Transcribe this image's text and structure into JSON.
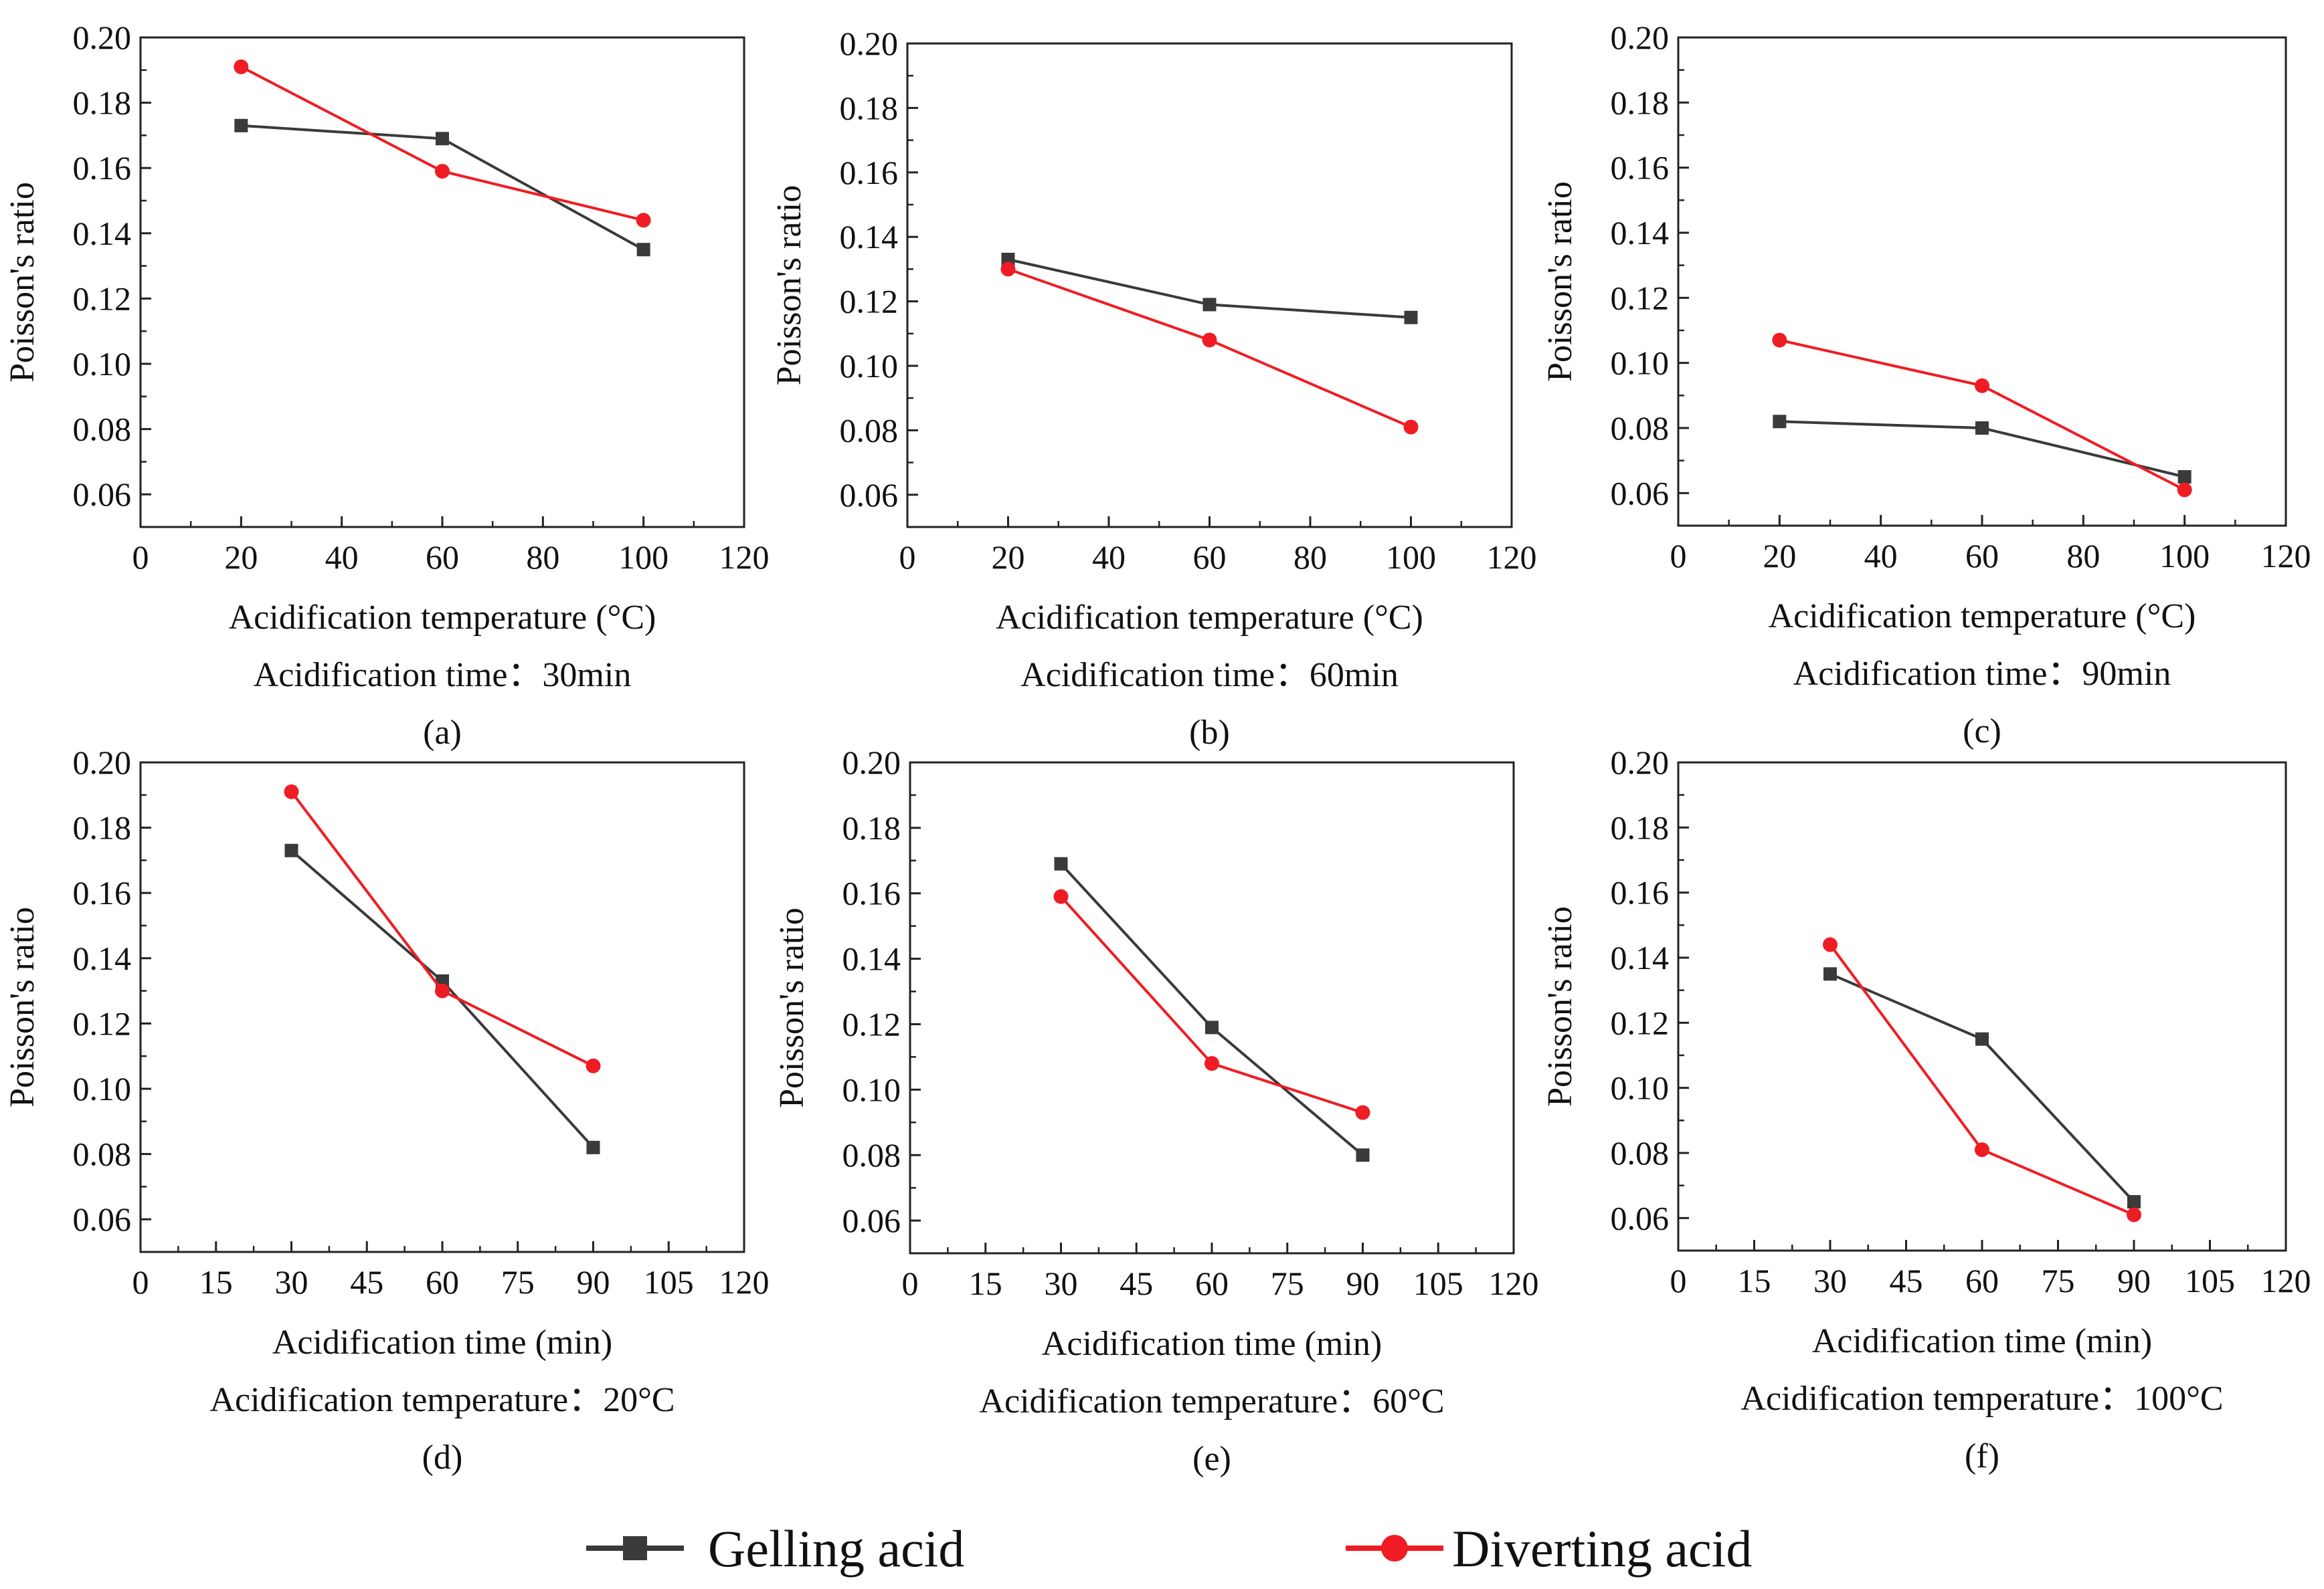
{
  "colors": {
    "gelling": "#3a3a3a",
    "diverting": "#f01c24",
    "axis": "#222222"
  },
  "legend": {
    "gelling": "Gelling acid",
    "diverting": "Diverting acid"
  },
  "chart_data": [
    {
      "type": "line",
      "panel": "(a)",
      "xlabel": "Acidification temperature (°C)",
      "condition": "Acidification time：30min",
      "ylabel": "Poisson's ratio",
      "xlim": [
        0,
        120
      ],
      "ylim": [
        0.05,
        0.2
      ],
      "xticks": [
        0,
        20,
        40,
        60,
        80,
        100,
        120
      ],
      "yticks": [
        0.06,
        0.08,
        0.1,
        0.12,
        0.14,
        0.16,
        0.18,
        0.2
      ],
      "x": [
        20,
        60,
        100
      ],
      "series": [
        {
          "name": "Gelling acid",
          "values": [
            0.173,
            0.169,
            0.135
          ]
        },
        {
          "name": "Diverting acid",
          "values": [
            0.191,
            0.159,
            0.144
          ]
        }
      ]
    },
    {
      "type": "line",
      "panel": "(b)",
      "xlabel": "Acidification temperature (°C)",
      "condition": "Acidification time：60min",
      "ylabel": "Poisson's ratio",
      "xlim": [
        0,
        120
      ],
      "ylim": [
        0.05,
        0.2
      ],
      "xticks": [
        0,
        20,
        40,
        60,
        80,
        100,
        120
      ],
      "yticks": [
        0.06,
        0.08,
        0.1,
        0.12,
        0.14,
        0.16,
        0.18,
        0.2
      ],
      "x": [
        20,
        60,
        100
      ],
      "series": [
        {
          "name": "Gelling acid",
          "values": [
            0.133,
            0.119,
            0.115
          ]
        },
        {
          "name": "Diverting acid",
          "values": [
            0.13,
            0.108,
            0.081
          ]
        }
      ]
    },
    {
      "type": "line",
      "panel": "(c)",
      "xlabel": "Acidification temperature (°C)",
      "condition": "Acidification time：90min",
      "ylabel": "Poisson's ratio",
      "xlim": [
        0,
        120
      ],
      "ylim": [
        0.05,
        0.2
      ],
      "xticks": [
        0,
        20,
        40,
        60,
        80,
        100,
        120
      ],
      "yticks": [
        0.06,
        0.08,
        0.1,
        0.12,
        0.14,
        0.16,
        0.18,
        0.2
      ],
      "x": [
        20,
        60,
        100
      ],
      "series": [
        {
          "name": "Gelling acid",
          "values": [
            0.082,
            0.08,
            0.065
          ]
        },
        {
          "name": "Diverting acid",
          "values": [
            0.107,
            0.093,
            0.061
          ]
        }
      ]
    },
    {
      "type": "line",
      "panel": "(d)",
      "xlabel": "Acidification time (min)",
      "condition": "Acidification temperature：20°C",
      "ylabel": "Poisson's ratio",
      "xlim": [
        0,
        120
      ],
      "ylim": [
        0.05,
        0.2
      ],
      "xticks": [
        0,
        15,
        30,
        45,
        60,
        75,
        90,
        105,
        120
      ],
      "yticks": [
        0.06,
        0.08,
        0.1,
        0.12,
        0.14,
        0.16,
        0.18,
        0.2
      ],
      "x": [
        30,
        60,
        90
      ],
      "series": [
        {
          "name": "Gelling acid",
          "values": [
            0.173,
            0.133,
            0.082
          ]
        },
        {
          "name": "Diverting acid",
          "values": [
            0.191,
            0.13,
            0.107
          ]
        }
      ]
    },
    {
      "type": "line",
      "panel": "(e)",
      "xlabel": "Acidification time (min)",
      "condition": "Acidification temperature：60°C",
      "ylabel": "Poisson's ratio",
      "xlim": [
        0,
        120
      ],
      "ylim": [
        0.05,
        0.2
      ],
      "xticks": [
        0,
        15,
        30,
        45,
        60,
        75,
        90,
        105,
        120
      ],
      "yticks": [
        0.06,
        0.08,
        0.1,
        0.12,
        0.14,
        0.16,
        0.18,
        0.2
      ],
      "x": [
        30,
        60,
        90
      ],
      "series": [
        {
          "name": "Gelling acid",
          "values": [
            0.169,
            0.119,
            0.08
          ]
        },
        {
          "name": "Diverting acid",
          "values": [
            0.159,
            0.108,
            0.093
          ]
        }
      ]
    },
    {
      "type": "line",
      "panel": "(f)",
      "xlabel": "Acidification time (min)",
      "condition": "Acidification temperature：100°C",
      "ylabel": "Poisson's ratio",
      "xlim": [
        0,
        120
      ],
      "ylim": [
        0.05,
        0.2
      ],
      "xticks": [
        0,
        15,
        30,
        45,
        60,
        75,
        90,
        105,
        120
      ],
      "yticks": [
        0.06,
        0.08,
        0.1,
        0.12,
        0.14,
        0.16,
        0.18,
        0.2
      ],
      "x": [
        30,
        60,
        90
      ],
      "series": [
        {
          "name": "Gelling acid",
          "values": [
            0.135,
            0.115,
            0.065
          ]
        },
        {
          "name": "Diverting acid",
          "values": [
            0.144,
            0.081,
            0.061
          ]
        }
      ]
    }
  ]
}
